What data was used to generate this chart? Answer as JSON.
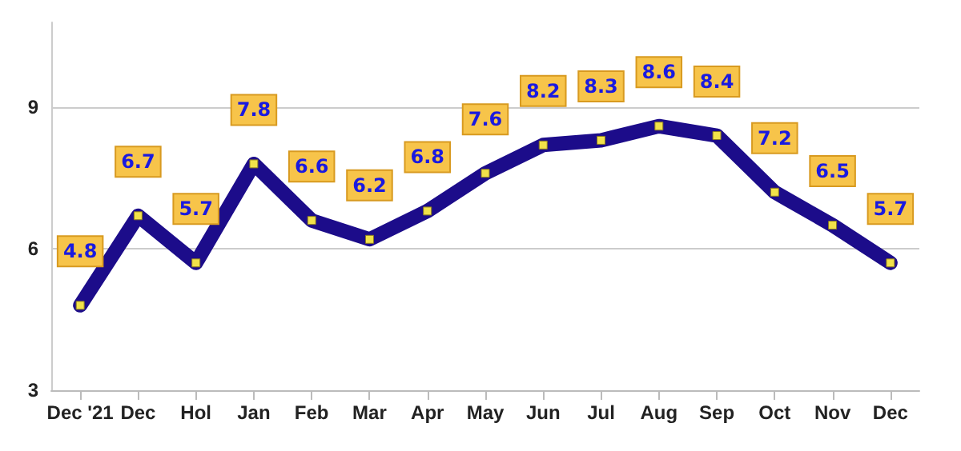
{
  "chart_data": {
    "type": "line",
    "categories": [
      "Dec '21",
      "Dec",
      "Hol",
      "Jan",
      "Feb",
      "Mar",
      "Apr",
      "May",
      "Jun",
      "Jul",
      "Aug",
      "Sep",
      "Oct",
      "Nov",
      "Dec"
    ],
    "values": [
      4.8,
      6.7,
      5.7,
      7.8,
      6.6,
      6.2,
      6.8,
      7.6,
      8.2,
      8.3,
      8.6,
      8.4,
      7.2,
      6.5,
      5.7
    ],
    "color": "#1c0c8a",
    "data_labels": true,
    "marker": "square",
    "line_style": "solid",
    "ylim": [
      3,
      10.8
    ],
    "yticks": [
      3,
      6,
      9
    ],
    "grid": "y"
  }
}
